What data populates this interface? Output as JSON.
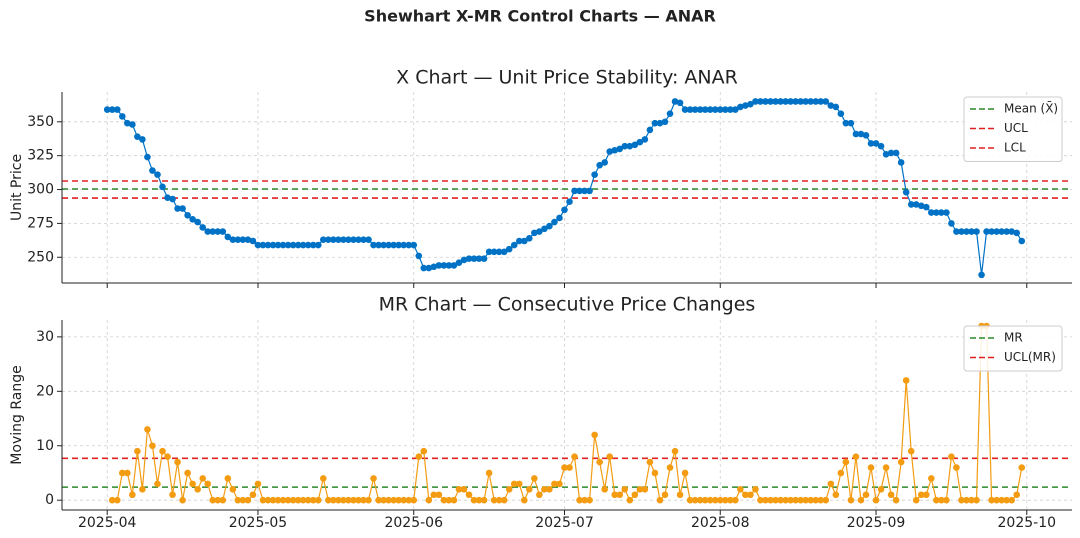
{
  "title": "Shewhart X-MR Control Charts — ANAR",
  "chart_data": [
    {
      "type": "line",
      "title": "X Chart — Unit Price Stability: ANAR",
      "ylabel": "Unit Price",
      "x": [
        0,
        1,
        2,
        3,
        4,
        5,
        6,
        7,
        8,
        9,
        10,
        11,
        12,
        13,
        14,
        15,
        16,
        17,
        18,
        19,
        20,
        21,
        22,
        23,
        24,
        25,
        26,
        27,
        28,
        29,
        30,
        31,
        32,
        33,
        34,
        35,
        36,
        37,
        38,
        39,
        40,
        41,
        42,
        43,
        44,
        45,
        46,
        47,
        48,
        49,
        50,
        51,
        52,
        53,
        54,
        55,
        56,
        57,
        58,
        59,
        60,
        61,
        62,
        63,
        64,
        65,
        66,
        67,
        68,
        69,
        70,
        71,
        72,
        73,
        74,
        75,
        76,
        77,
        78,
        79,
        80,
        81,
        82,
        83,
        84,
        85,
        86,
        87,
        88,
        89,
        90,
        91,
        92,
        93,
        94,
        95,
        96,
        97,
        98,
        99,
        100,
        101,
        102,
        103,
        104,
        105,
        106,
        107,
        108,
        109,
        110,
        111,
        112,
        113,
        114,
        115,
        116,
        117,
        118,
        119,
        120,
        121,
        122,
        123,
        124,
        125,
        126,
        127,
        128,
        129,
        130,
        131,
        132,
        133,
        134,
        135,
        136,
        137,
        138,
        139,
        140,
        141,
        142,
        143,
        144,
        145,
        146,
        147,
        148,
        149,
        150,
        151,
        152,
        153,
        154,
        155,
        156,
        157,
        158,
        159,
        160,
        161,
        162,
        163,
        164,
        165,
        166,
        167,
        168,
        169,
        170,
        171,
        172,
        173,
        174,
        175,
        176,
        177,
        178,
        179,
        180,
        181,
        182
      ],
      "xlim": [
        -9,
        192
      ],
      "xticks": [
        {
          "value": 0,
          "label": "2025-04"
        },
        {
          "value": 30,
          "label": "2025-05"
        },
        {
          "value": 61,
          "label": "2025-06"
        },
        {
          "value": 91,
          "label": "2025-07"
        },
        {
          "value": 122,
          "label": "2025-08"
        },
        {
          "value": 153,
          "label": "2025-09"
        },
        {
          "value": 183,
          "label": "2025-10"
        }
      ],
      "ylim": [
        231,
        372
      ],
      "yticks": [
        250,
        275,
        300,
        325,
        350
      ],
      "grid": true,
      "series": [
        {
          "color": "#0072c6",
          "values": [
            359,
            359,
            359,
            354,
            349,
            348,
            339,
            337,
            324,
            314,
            311,
            302,
            294,
            293,
            286,
            286,
            281,
            278,
            276,
            272,
            269,
            269,
            269,
            269,
            265,
            263,
            263,
            263,
            263,
            262,
            259,
            259,
            259,
            259,
            259,
            259,
            259,
            259,
            259,
            259,
            259,
            259,
            259,
            263,
            263,
            263,
            263,
            263,
            263,
            263,
            263,
            263,
            263,
            259,
            259,
            259,
            259,
            259,
            259,
            259,
            259,
            259,
            251,
            242,
            242,
            243,
            244,
            244,
            244,
            244,
            246,
            248,
            249,
            249,
            249,
            249,
            254,
            254,
            254,
            254,
            256,
            259,
            262,
            262,
            264,
            268,
            269,
            271,
            273,
            276,
            279,
            285,
            291,
            299,
            299,
            299,
            299,
            311,
            318,
            320,
            328,
            329,
            330,
            332,
            332,
            333,
            335,
            337,
            344,
            349,
            349,
            350,
            356,
            365,
            364,
            359,
            359,
            359,
            359,
            359,
            359,
            359,
            359,
            359,
            359,
            359,
            361,
            362,
            363,
            365,
            365,
            365,
            365,
            365,
            365,
            365,
            365,
            365,
            365,
            365,
            365,
            365,
            365,
            365,
            362,
            361,
            356,
            349,
            349,
            341,
            341,
            340,
            334,
            334,
            332,
            326,
            327,
            327,
            320,
            298,
            289,
            289,
            288,
            287,
            283,
            283,
            283,
            283,
            275,
            269,
            269,
            269,
            269,
            269,
            237,
            269,
            269,
            269,
            269,
            269,
            269,
            268,
            262
          ]
        }
      ],
      "hlines": [
        {
          "name": "Mean (X̄)",
          "value": 300.4,
          "color": "#2a8a2a"
        },
        {
          "name": "UCL",
          "value": 306.3,
          "color": "#e02020"
        },
        {
          "name": "LCL",
          "value": 293.7,
          "color": "#e02020"
        }
      ],
      "legend": "upper right"
    },
    {
      "type": "line",
      "title": "MR Chart — Consecutive Price Changes",
      "ylabel": "Moving Range",
      "ylim": [
        -1.8,
        33.1
      ],
      "yticks": [
        0,
        10,
        20,
        30
      ],
      "grid": true,
      "series": [
        {
          "color": "#f39c12",
          "values": [
            null,
            0,
            0,
            5,
            5,
            1,
            9,
            2,
            13,
            10,
            3,
            9,
            8,
            1,
            7,
            0,
            5,
            3,
            2,
            4,
            3,
            0,
            0,
            0,
            4,
            2,
            0,
            0,
            0,
            1,
            3,
            0,
            0,
            0,
            0,
            0,
            0,
            0,
            0,
            0,
            0,
            0,
            0,
            4,
            0,
            0,
            0,
            0,
            0,
            0,
            0,
            0,
            0,
            4,
            0,
            0,
            0,
            0,
            0,
            0,
            0,
            0,
            8,
            9,
            0,
            1,
            1,
            0,
            0,
            0,
            2,
            2,
            1,
            0,
            0,
            0,
            5,
            0,
            0,
            0,
            2,
            3,
            3,
            0,
            2,
            4,
            1,
            2,
            2,
            3,
            3,
            6,
            6,
            8,
            0,
            0,
            0,
            12,
            7,
            2,
            8,
            1,
            1,
            2,
            0,
            1,
            2,
            2,
            7,
            5,
            0,
            1,
            6,
            9,
            1,
            5,
            0,
            0,
            0,
            0,
            0,
            0,
            0,
            0,
            0,
            0,
            2,
            1,
            1,
            2,
            0,
            0,
            0,
            0,
            0,
            0,
            0,
            0,
            0,
            0,
            0,
            0,
            0,
            0,
            3,
            1,
            5,
            7,
            0,
            8,
            0,
            1,
            6,
            0,
            2,
            6,
            1,
            0,
            7,
            22,
            9,
            0,
            1,
            1,
            4,
            0,
            0,
            0,
            8,
            6,
            0,
            0,
            0,
            0,
            32,
            32,
            0,
            0,
            0,
            0,
            0,
            1,
            6
          ]
        }
      ],
      "hlines": [
        {
          "name": "MR",
          "value": 2.4,
          "color": "#2a8a2a"
        },
        {
          "name": "UCL(MR)",
          "value": 7.7,
          "color": "#e02020"
        }
      ],
      "legend": "upper right"
    }
  ]
}
